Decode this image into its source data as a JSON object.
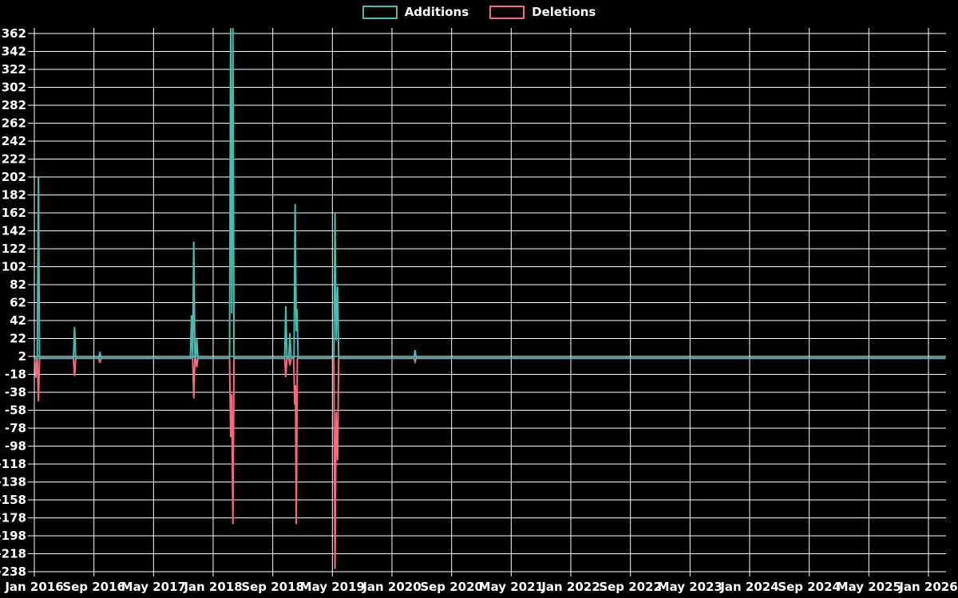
{
  "chart_data": {
    "type": "line",
    "title": "",
    "background_color": "#000000",
    "grid_color": "#ffffff",
    "text_color": "#ffffff",
    "grid": true,
    "legend_position": "top-center",
    "legend": [
      {
        "label": "Additions",
        "color": "#45bdb3"
      },
      {
        "label": "Deletions",
        "color": "#f9687e"
      }
    ],
    "y_axis": {
      "min": -238,
      "max": 362,
      "step": 20,
      "tick_labels": [
        "-238",
        "-218",
        "-198",
        "-178",
        "-158",
        "-138",
        "-118",
        "-98",
        "-78",
        "-58",
        "-38",
        "-18",
        "2",
        "22",
        "42",
        "62",
        "82",
        "102",
        "122",
        "142",
        "162",
        "182",
        "202",
        "222",
        "242",
        "262",
        "282",
        "302",
        "322",
        "342",
        "362"
      ]
    },
    "x_axis": {
      "unit": "months_since_jan_2016",
      "tick_months": [
        0,
        8,
        16,
        24,
        32,
        40,
        48,
        56,
        64,
        72,
        80,
        88,
        96,
        104,
        112,
        120
      ],
      "tick_labels": [
        "Jan 2016",
        "Sep 2016",
        "May 2017",
        "Jan 2018",
        "Sep 2018",
        "May 2019",
        "Jan 2020",
        "Sep 2020",
        "May 2021",
        "Jan 2022",
        "Sep 2022",
        "May 2023",
        "Jan 2024",
        "Sep 2024",
        "May 2025",
        "Jan 2026"
      ]
    },
    "baseline_value": 0,
    "series": [
      {
        "name": "Deletions",
        "color": "#f9687e",
        "points": [
          [
            -0.1,
            0
          ],
          [
            0.05,
            0
          ],
          [
            0.2,
            -22
          ],
          [
            0.35,
            0
          ],
          [
            0.4,
            0
          ],
          [
            0.55,
            -48
          ],
          [
            0.7,
            0
          ],
          [
            5.25,
            0
          ],
          [
            5.4,
            -20
          ],
          [
            5.55,
            0
          ],
          [
            8.65,
            0
          ],
          [
            8.8,
            -5
          ],
          [
            8.95,
            0
          ],
          [
            21.25,
            0
          ],
          [
            21.4,
            -45
          ],
          [
            21.55,
            0
          ],
          [
            21.65,
            0
          ],
          [
            21.8,
            -10
          ],
          [
            21.95,
            0
          ],
          [
            26.2,
            0
          ],
          [
            26.35,
            -88
          ],
          [
            26.5,
            -40
          ],
          [
            26.65,
            -185
          ],
          [
            26.8,
            0
          ],
          [
            33.6,
            0
          ],
          [
            33.75,
            -21
          ],
          [
            33.9,
            0
          ],
          [
            34.15,
            0
          ],
          [
            34.3,
            -8
          ],
          [
            34.45,
            0
          ],
          [
            34.8,
            0
          ],
          [
            34.95,
            -52
          ],
          [
            35.05,
            -30
          ],
          [
            35.15,
            -185
          ],
          [
            35.3,
            0
          ],
          [
            40.2,
            0
          ],
          [
            40.35,
            -235
          ],
          [
            40.5,
            -60
          ],
          [
            40.7,
            -114
          ],
          [
            40.85,
            0
          ],
          [
            50.95,
            0
          ],
          [
            51.1,
            -4
          ],
          [
            51.25,
            0
          ],
          [
            122.3,
            0
          ]
        ]
      },
      {
        "name": "Additions",
        "color": "#45bdb3",
        "points": [
          [
            -0.1,
            0
          ],
          [
            0.4,
            0
          ],
          [
            0.55,
            202
          ],
          [
            0.7,
            0
          ],
          [
            5.25,
            0
          ],
          [
            5.4,
            35
          ],
          [
            5.55,
            0
          ],
          [
            8.65,
            0
          ],
          [
            8.8,
            7
          ],
          [
            8.95,
            0
          ],
          [
            20.95,
            0
          ],
          [
            21.1,
            48
          ],
          [
            21.25,
            0
          ],
          [
            21.4,
            130
          ],
          [
            21.55,
            0
          ],
          [
            21.65,
            0
          ],
          [
            21.8,
            22
          ],
          [
            21.95,
            0
          ],
          [
            26.2,
            0
          ],
          [
            26.35,
            368
          ],
          [
            26.5,
            50
          ],
          [
            26.65,
            368
          ],
          [
            26.8,
            0
          ],
          [
            33.6,
            0
          ],
          [
            33.75,
            58
          ],
          [
            33.9,
            0
          ],
          [
            34.15,
            0
          ],
          [
            34.3,
            28
          ],
          [
            34.45,
            0
          ],
          [
            34.85,
            0
          ],
          [
            35.0,
            172
          ],
          [
            35.15,
            30
          ],
          [
            35.25,
            55
          ],
          [
            35.4,
            0
          ],
          [
            40.2,
            0
          ],
          [
            40.35,
            162
          ],
          [
            40.5,
            20
          ],
          [
            40.7,
            80
          ],
          [
            40.85,
            0
          ],
          [
            50.95,
            0
          ],
          [
            51.1,
            9
          ],
          [
            51.25,
            0
          ],
          [
            122.3,
            0
          ]
        ]
      }
    ]
  }
}
